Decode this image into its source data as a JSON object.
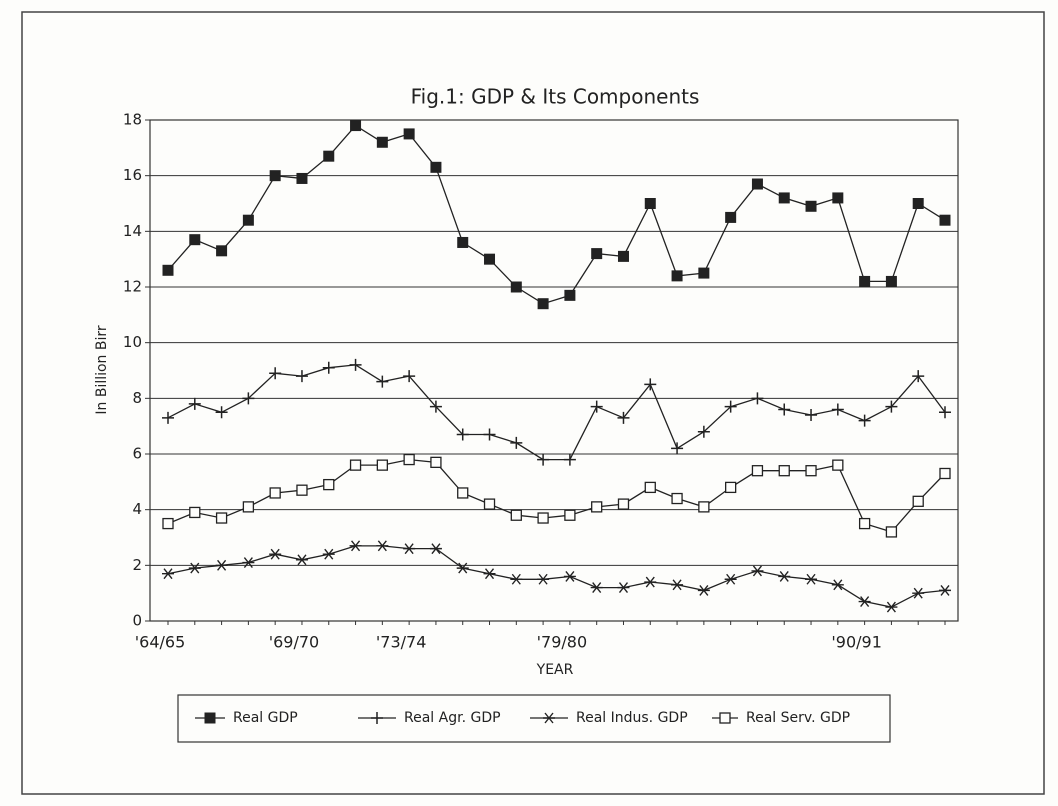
{
  "chart_data": {
    "type": "line",
    "title": "Fig.1: GDP & Its Components",
    "x_label": "YEAR",
    "y_label": "In Billion Birr",
    "categories": [
      "'64/65",
      null,
      null,
      null,
      null,
      "'69/70",
      null,
      null,
      null,
      "'73/74",
      null,
      null,
      null,
      null,
      null,
      "'79/80",
      null,
      null,
      null,
      null,
      null,
      null,
      null,
      null,
      null,
      null,
      "'90/91",
      null,
      null,
      null
    ],
    "ylim": [
      0,
      18
    ],
    "yticks": [
      0,
      2,
      4,
      6,
      8,
      10,
      12,
      14,
      16,
      18
    ],
    "grid": true,
    "legend": "bottom",
    "series": [
      {
        "name": "Real GDP",
        "color": "#222222",
        "marker": "square-filled",
        "values": [
          12.6,
          13.7,
          13.3,
          14.4,
          16.0,
          15.9,
          16.7,
          17.8,
          17.2,
          17.5,
          16.3,
          13.6,
          13.0,
          12.0,
          11.4,
          11.7,
          13.2,
          13.1,
          15.0,
          12.4,
          12.5,
          14.5,
          15.7,
          15.2,
          14.9,
          15.2,
          12.2,
          12.2,
          15.0,
          14.4
        ]
      },
      {
        "name": "Real Agr. GDP",
        "color": "#222222",
        "marker": "plus",
        "values": [
          7.3,
          7.8,
          7.5,
          8.0,
          8.9,
          8.8,
          9.1,
          9.2,
          8.6,
          8.8,
          7.7,
          6.7,
          6.7,
          6.4,
          5.8,
          5.8,
          7.7,
          7.3,
          8.5,
          6.2,
          6.8,
          7.7,
          8.0,
          7.6,
          7.4,
          7.6,
          7.2,
          7.7,
          8.8,
          7.5
        ]
      },
      {
        "name": "Real Indus. GDP",
        "color": "#222222",
        "marker": "asterisk",
        "values": [
          1.7,
          1.9,
          2.0,
          2.1,
          2.4,
          2.2,
          2.4,
          2.7,
          2.7,
          2.6,
          2.6,
          1.9,
          1.7,
          1.5,
          1.5,
          1.6,
          1.2,
          1.2,
          1.4,
          1.3,
          1.1,
          1.5,
          1.8,
          1.6,
          1.5,
          1.3,
          0.7,
          0.5,
          1.0,
          1.1
        ]
      },
      {
        "name": "Real Serv. GDP",
        "color": "#222222",
        "marker": "square-open",
        "values": [
          3.5,
          3.9,
          3.7,
          4.1,
          4.6,
          4.7,
          4.9,
          5.6,
          5.6,
          5.8,
          5.7,
          4.6,
          4.2,
          3.8,
          3.7,
          3.8,
          4.1,
          4.2,
          4.8,
          4.4,
          4.1,
          4.8,
          5.4,
          5.4,
          5.4,
          5.6,
          3.5,
          3.2,
          4.3,
          5.3
        ]
      }
    ]
  }
}
